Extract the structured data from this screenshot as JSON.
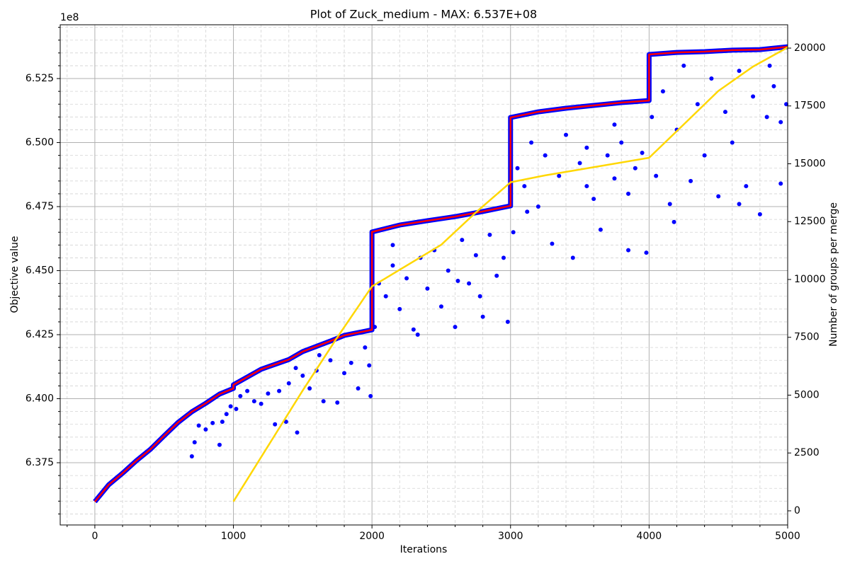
{
  "chart_data": {
    "type": "combo",
    "title": "Plot of Zuck_medium - MAX: 6.537E+08",
    "xlabel": "Iterations",
    "ylabel": "Objective value",
    "y2label": "Number of groups per merge",
    "y_offset_label": "1e8",
    "xlim": [
      -250,
      5000
    ],
    "xticks": [
      0,
      1000,
      2000,
      3000,
      4000,
      5000
    ],
    "xminor_ticks": [
      -200,
      200,
      400,
      600,
      800,
      1200,
      1400,
      1600,
      1800,
      2200,
      2400,
      2600,
      2800,
      3200,
      3400,
      3600,
      3800,
      4200,
      4400,
      4600,
      4800
    ],
    "ylim": [
      635070000,
      654600000
    ],
    "yticks": [
      {
        "value": 637500000,
        "label": "6.375"
      },
      {
        "value": 640000000,
        "label": "6.400"
      },
      {
        "value": 642500000,
        "label": "6.425"
      },
      {
        "value": 645000000,
        "label": "6.450"
      },
      {
        "value": 647500000,
        "label": "6.475"
      },
      {
        "value": 650000000,
        "label": "6.500"
      },
      {
        "value": 652500000,
        "label": "6.525"
      }
    ],
    "yminor_ticks": [
      635500000,
      636000000,
      636500000,
      637000000,
      638000000,
      638500000,
      639000000,
      639500000,
      640500000,
      641000000,
      641500000,
      642000000,
      643000000,
      643500000,
      644000000,
      644500000,
      645500000,
      646000000,
      646500000,
      647000000,
      648000000,
      648500000,
      649000000,
      649500000,
      650500000,
      651000000,
      651500000,
      652000000,
      653000000,
      653500000,
      654000000,
      654500000
    ],
    "y2lim": [
      -612,
      21009
    ],
    "y2ticks": [
      0,
      2500,
      5000,
      7500,
      10000,
      12500,
      15000,
      17500,
      20000
    ],
    "grid": true,
    "minor_grid": true,
    "series": [
      {
        "type": "scatter",
        "color": "#0000ff",
        "x": [
          700,
          720,
          750,
          800,
          850,
          900,
          920,
          950,
          980,
          1020,
          1050,
          1100,
          1150,
          1200,
          1250,
          1300,
          1330,
          1380,
          1400,
          1460,
          1500,
          1550,
          1600,
          1650,
          1700,
          1750,
          1800,
          1850,
          1900,
          1950,
          1980,
          1990,
          1450,
          1620,
          2020,
          2050,
          2100,
          2150,
          2200,
          2250,
          2300,
          2350,
          2400,
          2450,
          2500,
          2550,
          2600,
          2650,
          2700,
          2750,
          2800,
          2850,
          2900,
          2950,
          2980,
          2330,
          2620,
          2780,
          2150,
          3020,
          3050,
          3100,
          3150,
          3200,
          3250,
          3300,
          3350,
          3400,
          3450,
          3500,
          3550,
          3600,
          3650,
          3700,
          3750,
          3800,
          3850,
          3900,
          3950,
          3980,
          3550,
          3750,
          3120,
          3850,
          4020,
          4050,
          4100,
          4150,
          4200,
          4250,
          4300,
          4350,
          4400,
          4450,
          4500,
          4550,
          4600,
          4650,
          4700,
          4750,
          4800,
          4850,
          4900,
          4950,
          4990,
          4180,
          4650,
          4870,
          4950
        ],
        "values": [
          637750000,
          638300000,
          638950000,
          638800000,
          639050000,
          638200000,
          639100000,
          639400000,
          639700000,
          639600000,
          640100000,
          640300000,
          639900000,
          639800000,
          640200000,
          639000000,
          640300000,
          639100000,
          640600000,
          638680000,
          640900000,
          640400000,
          641100000,
          639900000,
          641500000,
          639850000,
          641000000,
          641400000,
          640400000,
          642000000,
          641300000,
          640100000,
          641200000,
          641700000,
          642800000,
          644500000,
          644000000,
          645200000,
          643500000,
          644700000,
          642700000,
          645500000,
          644300000,
          645800000,
          643600000,
          645000000,
          642800000,
          646200000,
          644500000,
          645600000,
          643200000,
          646400000,
          644800000,
          645500000,
          643000000,
          642500000,
          644600000,
          644000000,
          646000000,
          646500000,
          649000000,
          648300000,
          650000000,
          647500000,
          649500000,
          646050000,
          648700000,
          650300000,
          645500000,
          649200000,
          649800000,
          647800000,
          646600000,
          649500000,
          648600000,
          650000000,
          645800000,
          649000000,
          649600000,
          645700000,
          648300000,
          650700000,
          647300000,
          648000000,
          651000000,
          648700000,
          652000000,
          647600000,
          650500000,
          653000000,
          648500000,
          651500000,
          649500000,
          652500000,
          647900000,
          651200000,
          650000000,
          652800000,
          648300000,
          651800000,
          647200000,
          651000000,
          652200000,
          648400000,
          651500000,
          646900000,
          647600000,
          653000000,
          650800000
        ]
      },
      {
        "type": "line",
        "color": "#ff0000",
        "edge_color": "#0000ff",
        "x": [
          0,
          100,
          200,
          300,
          400,
          500,
          600,
          700,
          800,
          900,
          1000,
          1000,
          1200,
          1400,
          1500,
          1700,
          1800,
          2000,
          2000,
          2200,
          2400,
          2600,
          2800,
          3000,
          3000,
          3200,
          3400,
          3600,
          3800,
          4000,
          4000,
          4200,
          4400,
          4600,
          4800,
          5000
        ],
        "values": [
          635980000,
          636640000,
          637090000,
          637580000,
          638020000,
          638550000,
          639070000,
          639490000,
          639820000,
          640180000,
          640400000,
          640540000,
          641150000,
          641530000,
          641840000,
          642250000,
          642470000,
          642690000,
          646510000,
          646780000,
          646950000,
          647110000,
          647310000,
          647530000,
          650980000,
          651200000,
          651340000,
          651450000,
          651560000,
          651640000,
          653440000,
          653520000,
          653550000,
          653610000,
          653630000,
          653740000
        ]
      },
      {
        "type": "line",
        "color": "#ffd700",
        "axis": "y2",
        "x": [
          1000,
          1250,
          1500,
          1750,
          2000,
          2100,
          2500,
          2750,
          3000,
          3250,
          3500,
          4000,
          4250,
          4500,
          4750,
          5000
        ],
        "values": [
          400,
          2800,
          5200,
          7500,
          9700,
          10060,
          11500,
          12900,
          14200,
          14500,
          14750,
          15260,
          16700,
          18150,
          19200,
          20030
        ]
      }
    ]
  }
}
